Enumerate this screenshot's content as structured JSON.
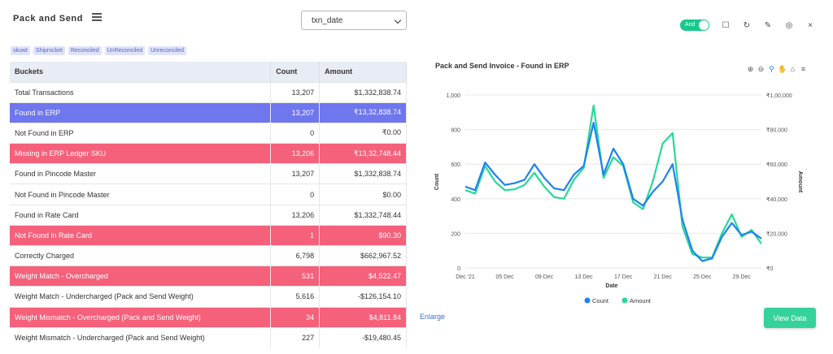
{
  "header": {
    "title": "Pack and Send",
    "menu_icon": "menu-icon"
  },
  "select": {
    "value": "txn_date"
  },
  "tags": [
    "skuwt",
    "Shiprocket",
    "Reconciled",
    "UnReconciled",
    "Unreconciled"
  ],
  "table": {
    "columns": [
      "Buckets",
      "Count",
      "Amount"
    ],
    "rows": [
      {
        "bucket": "Total Transactions",
        "count": "13,207",
        "amount": "$1,332,838.74",
        "highlight": ""
      },
      {
        "bucket": "Found in ERP",
        "count": "13,207",
        "amount": "₹13,32,838.74",
        "highlight": "blue"
      },
      {
        "bucket": "Not Found in ERP",
        "count": "0",
        "amount": "₹0.00",
        "highlight": ""
      },
      {
        "bucket": "Missing in ERP Ledger SKU",
        "count": "13,206",
        "amount": "₹13,32,748.44",
        "highlight": "red"
      },
      {
        "bucket": "Found in Pincode Master",
        "count": "13,207",
        "amount": "$1,332,838.74",
        "highlight": ""
      },
      {
        "bucket": "Not Found in Pincode Master",
        "count": "0",
        "amount": "$0.00",
        "highlight": ""
      },
      {
        "bucket": "Found in Rate Card",
        "count": "13,206",
        "amount": "$1,332,748.44",
        "highlight": ""
      },
      {
        "bucket": "Not Found in Rate Card",
        "count": "1",
        "amount": "$90.30",
        "highlight": "red"
      },
      {
        "bucket": "Correctly Charged",
        "count": "6,798",
        "amount": "$662,967.52",
        "highlight": ""
      },
      {
        "bucket": "Weight Match - Overcharged",
        "count": "531",
        "amount": "$4,522.47",
        "highlight": "red"
      },
      {
        "bucket": "Weight Match - Undercharged (Pack and Send Weight)",
        "count": "5,616",
        "amount": "-$126,154.10",
        "highlight": ""
      },
      {
        "bucket": "Weight Mismatch - Overcharged (Pack and Send Weight)",
        "count": "34",
        "amount": "$4,811.84",
        "highlight": "red"
      },
      {
        "bucket": "Weight Mismatch - Undercharged (Pack and Send  Weight)",
        "count": "227",
        "amount": "-$19,480.45",
        "highlight": ""
      }
    ]
  },
  "toolbar": {
    "toggle_label": "And",
    "icons": [
      "checkbox-icon",
      "refresh-icon",
      "edit-icon",
      "hide-icon",
      "close-icon"
    ]
  },
  "chart_tools": [
    "zoom-in-icon",
    "zoom-out-icon",
    "magnify-icon",
    "pan-icon",
    "home-icon",
    "menu-icon"
  ],
  "footer": {
    "enlarge_label": "Enlarge",
    "view_data_label": "View Data"
  },
  "colors": {
    "blue_row": "#6f77ee",
    "red_row": "#f5607a",
    "count_series": "#1d82f0",
    "amount_series": "#27d996",
    "accent": "#35d39b"
  },
  "chart_data": {
    "type": "line",
    "title": "Pack and Send Invoice - Found in ERP",
    "xlabel": "Date",
    "ylabel": "Count",
    "y2label": "Amount",
    "x_ticks": [
      "Dec '21",
      "05 Dec",
      "09 Dec",
      "13 Dec",
      "17 Dec",
      "21 Dec",
      "25 Dec",
      "29 Dec"
    ],
    "y_ticks": [
      "0",
      "200",
      "400",
      "600",
      "800",
      "1,000"
    ],
    "y2_ticks": [
      "₹0",
      "₹20,000",
      "₹40,000",
      "₹60,000",
      "₹80,000",
      "₹1,00,000"
    ],
    "ylim": [
      0,
      1000
    ],
    "y2lim": [
      0,
      100000
    ],
    "legend_position": "bottom",
    "series": [
      {
        "name": "Count",
        "axis": "left",
        "color": "#1d82f0",
        "values": [
          470,
          450,
          610,
          540,
          480,
          490,
          510,
          600,
          520,
          460,
          450,
          540,
          590,
          840,
          540,
          690,
          600,
          400,
          360,
          440,
          500,
          600,
          280,
          100,
          40,
          55,
          180,
          260,
          190,
          210,
          170
        ]
      },
      {
        "name": "Amount",
        "axis": "right",
        "color": "#27d996",
        "values": [
          45000,
          43000,
          59000,
          50000,
          45000,
          45500,
          48000,
          55000,
          47000,
          41000,
          40000,
          51000,
          58000,
          94000,
          52000,
          64000,
          59000,
          38000,
          34000,
          50000,
          72000,
          78000,
          24000,
          8000,
          6000,
          6000,
          20000,
          31000,
          18000,
          22000,
          14000
        ]
      }
    ]
  }
}
